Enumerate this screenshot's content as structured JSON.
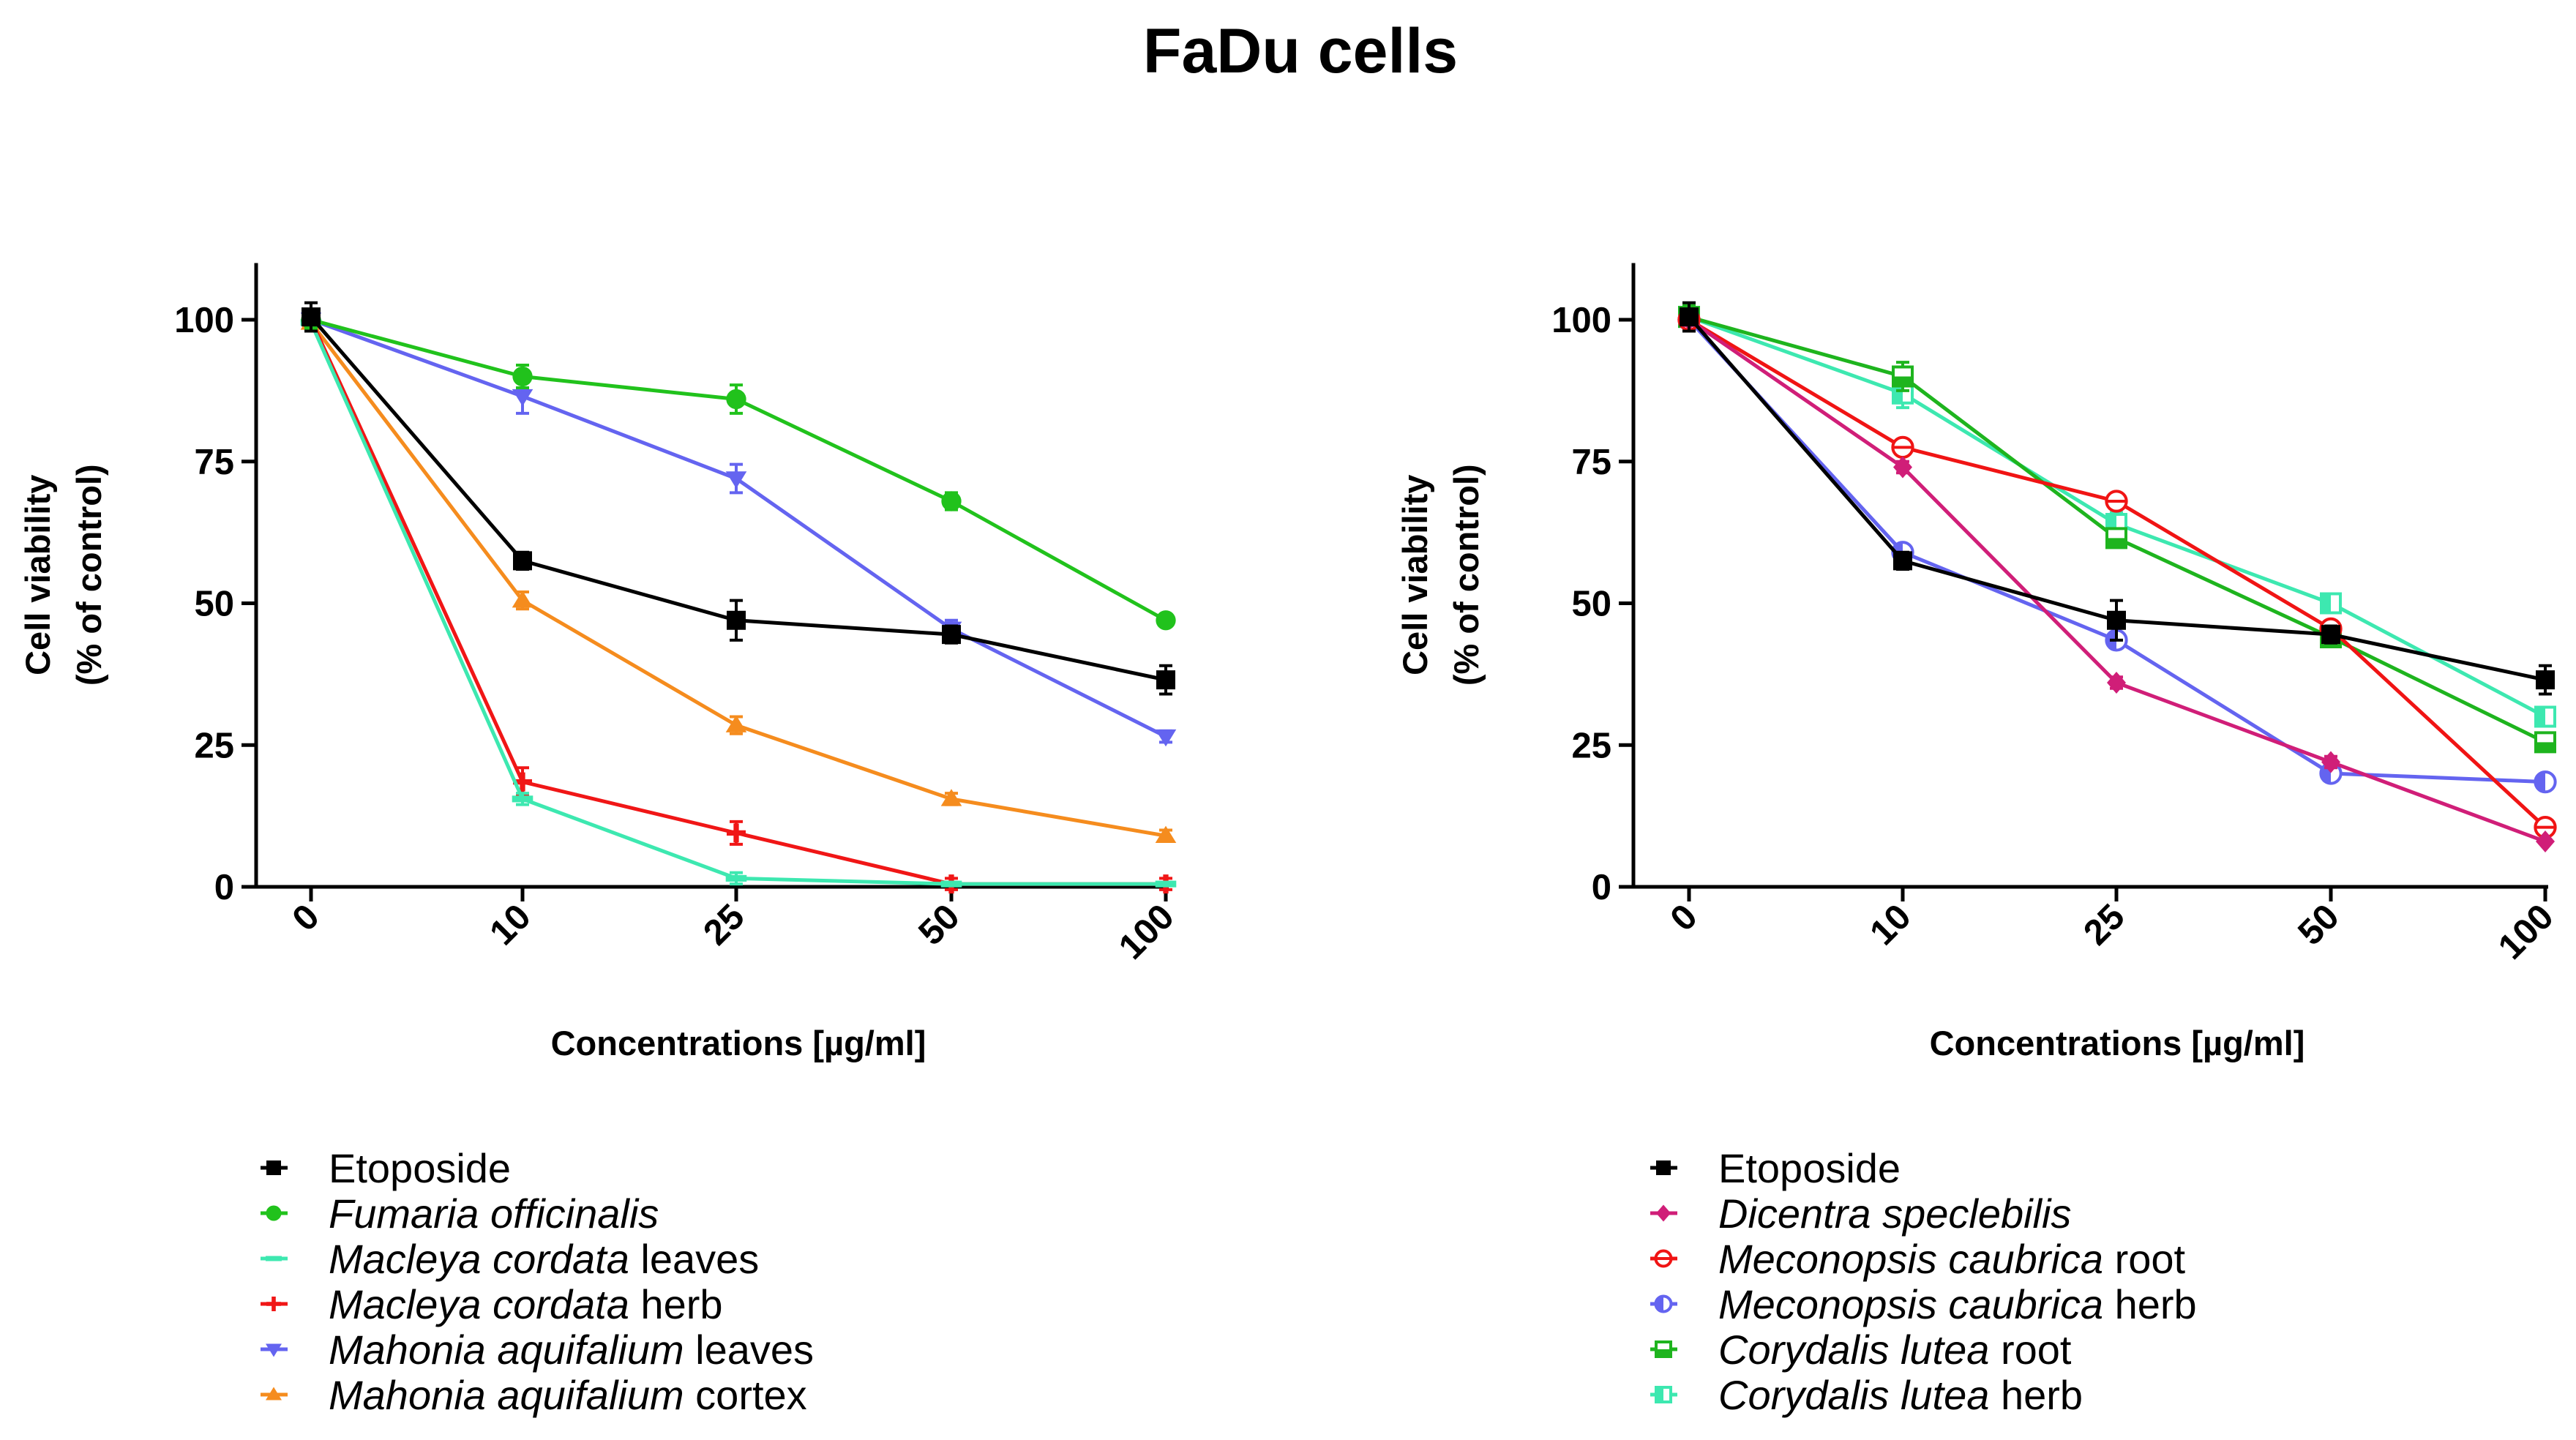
{
  "figure_title": "FaDu cells",
  "chart_data": [
    {
      "type": "line",
      "title": "",
      "xlabel": "Concentrations [µg/ml]",
      "ylabel_line1": "Cell viability",
      "ylabel_line2": "(% of control)",
      "categories": [
        "0",
        "10",
        "25",
        "50",
        "100"
      ],
      "ylim": [
        0,
        110
      ],
      "yticks": [
        0,
        25,
        50,
        75,
        100
      ],
      "grid": false,
      "legend_position": "bottom",
      "series": [
        {
          "name": "Etoposide",
          "italic": "",
          "suffix": "Etoposide",
          "color": "#000000",
          "marker": "square",
          "values": [
            100.5,
            57.5,
            47,
            44.5,
            36.5
          ],
          "errors": [
            2.5,
            1.5,
            3.5,
            1.5,
            2.5
          ]
        },
        {
          "name": "Fumaria officinalis",
          "italic": "Fumaria officinalis",
          "suffix": "",
          "color": "#21c21c",
          "marker": "circle",
          "values": [
            100,
            90,
            86,
            68,
            47
          ],
          "errors": [
            1.5,
            2,
            2.5,
            1.5,
            1
          ]
        },
        {
          "name": "Macleya cordata leaves",
          "italic": "Macleya cordata",
          "suffix": " leaves",
          "color": "#3de8b0",
          "marker": "dash",
          "values": [
            99.5,
            15.5,
            1.5,
            0.5,
            0.5
          ],
          "errors": [
            1,
            1,
            1,
            0.5,
            0.5
          ]
        },
        {
          "name": "Macleya cordata herb",
          "italic": "Macleya cordata",
          "suffix": " herb",
          "color": "#f01616",
          "marker": "plus",
          "values": [
            100,
            18.5,
            9.5,
            0.5,
            0.5
          ],
          "errors": [
            1,
            2.5,
            2,
            1,
            1
          ]
        },
        {
          "name": "Mahonia aquifalium leaves",
          "italic": "Mahonia aquifalium",
          "suffix": " leaves",
          "color": "#6464f0",
          "marker": "triangle-down",
          "values": [
            100,
            86.5,
            72,
            45.5,
            26.5
          ],
          "errors": [
            1.5,
            3,
            2.5,
            1.5,
            1
          ]
        },
        {
          "name": "Mahonia aquifalium cortex",
          "italic": "Mahonia aquifalium",
          "suffix": " cortex",
          "color": "#f58c1e",
          "marker": "triangle-up",
          "values": [
            99.5,
            50.5,
            28.5,
            15.5,
            9
          ],
          "errors": [
            1,
            1.5,
            1.5,
            1,
            1
          ]
        }
      ]
    },
    {
      "type": "line",
      "title": "",
      "xlabel": "Concentrations [µg/ml]",
      "ylabel_line1": "Cell viability",
      "ylabel_line2": "(% of control)",
      "categories": [
        "0",
        "10",
        "25",
        "50",
        "100"
      ],
      "ylim": [
        0,
        110
      ],
      "yticks": [
        0,
        25,
        50,
        75,
        100
      ],
      "grid": false,
      "legend_position": "bottom",
      "series": [
        {
          "name": "Etoposide",
          "italic": "",
          "suffix": "Etoposide",
          "color": "#000000",
          "marker": "square",
          "values": [
            100.5,
            57.5,
            47,
            44.5,
            36.5
          ],
          "errors": [
            2.5,
            1.5,
            3.5,
            1.5,
            2.5
          ]
        },
        {
          "name": "Dicentra speclebilis",
          "italic": "Dicentra speclebilis",
          "suffix": "",
          "color": "#d01e78",
          "marker": "diamond",
          "values": [
            100,
            74,
            36,
            22,
            8
          ],
          "errors": [
            1,
            1,
            1,
            1,
            0.5
          ]
        },
        {
          "name": "Meconopsis caubrica root",
          "italic": "Meconopsis caubrica",
          "suffix": " root",
          "color": "#f01414",
          "marker": "circle-half",
          "values": [
            100,
            77.5,
            68,
            45.5,
            10.5
          ],
          "errors": [
            1,
            1,
            1,
            1,
            1
          ]
        },
        {
          "name": "Meconopsis caubrica herb",
          "italic": "Meconopsis caubrica",
          "suffix": " herb",
          "color": "#6464f0",
          "marker": "circle-vhalf",
          "values": [
            100,
            59,
            43.5,
            20,
            18.5
          ],
          "errors": [
            1,
            1,
            1,
            1,
            1
          ]
        },
        {
          "name": "Corydalis lutea root",
          "italic": "Corydalis lutea",
          "suffix": " root",
          "color": "#1eb41e",
          "marker": "square-half",
          "values": [
            100.5,
            90,
            61.5,
            44,
            25.5
          ],
          "errors": [
            2,
            2.5,
            1.5,
            1,
            1
          ]
        },
        {
          "name": "Corydalis lutea herb",
          "italic": "Corydalis lutea",
          "suffix": " herb",
          "color": "#3de8b0",
          "marker": "square-vhalf",
          "values": [
            100.5,
            87,
            64,
            50,
            30
          ],
          "errors": [
            1.5,
            2.5,
            2,
            1,
            1
          ]
        }
      ]
    }
  ]
}
